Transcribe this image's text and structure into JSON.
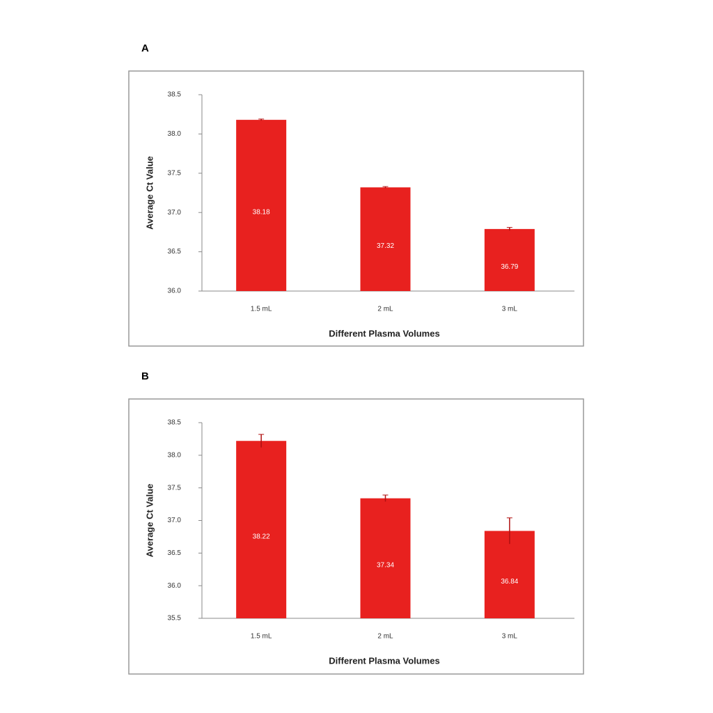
{
  "chart_data": [
    {
      "type": "bar",
      "panel_label": "A",
      "x_label": "Different Plasma Volumes",
      "y_label": "Average Ct Value",
      "categories": [
        "1.5 mL",
        "2 mL",
        "3 mL"
      ],
      "values": [
        38.18,
        37.32,
        36.79
      ],
      "errors": [
        0.01,
        0.01,
        0.02
      ],
      "color": "#e8211f",
      "ylim": [
        36,
        38.5
      ],
      "yticks": [
        {
          "value": 36,
          "label": "36.0"
        },
        {
          "value": 36.5,
          "label": "36.5"
        },
        {
          "value": 37,
          "label": "37.0"
        },
        {
          "value": 37.5,
          "label": "37.5"
        },
        {
          "value": 38,
          "label": "38.0"
        },
        {
          "value": 38.5,
          "label": "38.5"
        }
      ]
    },
    {
      "type": "bar",
      "panel_label": "B",
      "x_label": "Different Plasma Volumes",
      "y_label": "Average Ct Value",
      "categories": [
        "1.5 mL",
        "2 mL",
        "3 mL"
      ],
      "values": [
        38.22,
        37.34,
        36.84
      ],
      "errors": [
        0.1,
        0.05,
        0.2
      ],
      "color": "#e8211f",
      "ylim": [
        35.5,
        38.5
      ],
      "yticks": [
        {
          "value": 35.5,
          "label": "35.5"
        },
        {
          "value": 36,
          "label": "36.0"
        },
        {
          "value": 36.5,
          "label": "36.5"
        },
        {
          "value": 37,
          "label": "37.0"
        },
        {
          "value": 37.5,
          "label": "37.5"
        },
        {
          "value": 38,
          "label": "38.0"
        },
        {
          "value": 38.5,
          "label": "38.5"
        }
      ]
    }
  ]
}
